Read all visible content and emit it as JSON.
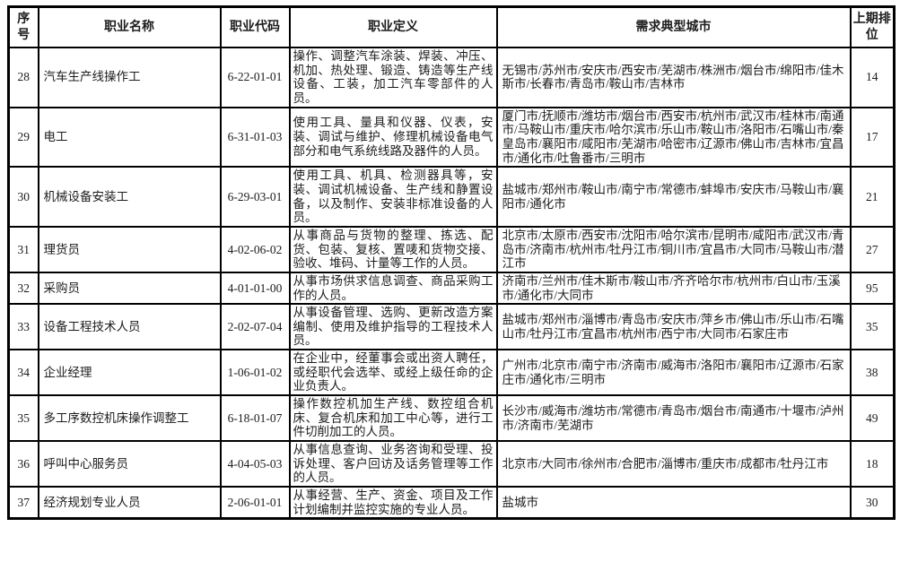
{
  "colors": {
    "background": "#ffffff",
    "border": "#000000",
    "text": "#1c1c1c"
  },
  "table": {
    "columns": [
      {
        "key": "no",
        "label": "序号"
      },
      {
        "key": "name",
        "label": "职业名称"
      },
      {
        "key": "code",
        "label": "职业代码"
      },
      {
        "key": "definition",
        "label": "职业定义"
      },
      {
        "key": "cities",
        "label": "需求典型城市"
      },
      {
        "key": "rank",
        "label": "上期排位"
      }
    ],
    "rows": [
      {
        "no": "28",
        "name": "汽车生产线操作工",
        "code": "6-22-01-01",
        "definition": "操作、调整汽车涂装、焊装、冲压、机加、热处理、锻造、铸造等生产线设备、工装，加工汽车零部件的人员。",
        "cities": "无锡市/苏州市/安庆市/西安市/芜湖市/株洲市/烟台市/绵阳市/佳木斯市/长春市/青岛市/鞍山市/吉林市",
        "rank": "14"
      },
      {
        "no": "29",
        "name": "电工",
        "code": "6-31-01-03",
        "definition": "使用工具、量具和仪器、仪表，安装、调试与维护、修理机械设备电气部分和电气系统线路及器件的人员。",
        "cities": "厦门市/抚顺市/潍坊市/烟台市/西安市/杭州市/武汉市/桂林市/南通市/马鞍山市/重庆市/哈尔滨市/乐山市/鞍山市/洛阳市/石嘴山市/秦皇岛市/襄阳市/咸阳市/芜湖市/哈密市/辽源市/佛山市/吉林市/宜昌市/通化市/吐鲁番市/三明市",
        "rank": "17"
      },
      {
        "no": "30",
        "name": "机械设备安装工",
        "code": "6-29-03-01",
        "definition": "使用工具、机具、检测器具等，安装、调试机械设备、生产线和静置设备，以及制作、安装非标准设备的人员。",
        "cities": "盐城市/郑州市/鞍山市/南宁市/常德市/蚌埠市/安庆市/马鞍山市/襄阳市/通化市",
        "rank": "21"
      },
      {
        "no": "31",
        "name": "理货员",
        "code": "4-02-06-02",
        "definition": "从事商品与货物的整理、拣选、配货、包装、复核、置唛和货物交接、验收、堆码、计量等工作的人员。",
        "cities": "北京市/太原市/西安市/沈阳市/哈尔滨市/昆明市/咸阳市/武汉市/青岛市/济南市/杭州市/牡丹江市/铜川市/宜昌市/大同市/马鞍山市/潜江市",
        "rank": "27"
      },
      {
        "no": "32",
        "name": "采购员",
        "code": "4-01-01-00",
        "definition": "从事市场供求信息调查、商品采购工作的人员。",
        "cities": "济南市/兰州市/佳木斯市/鞍山市/齐齐哈尔市/杭州市/白山市/玉溪市/通化市/大同市",
        "rank": "95"
      },
      {
        "no": "33",
        "name": "设备工程技术人员",
        "code": "2-02-07-04",
        "definition": "从事设备管理、选购、更新改造方案编制、使用及维护指导的工程技术人员。",
        "cities": "盐城市/郑州市/淄博市/青岛市/安庆市/萍乡市/佛山市/乐山市/石嘴山市/牡丹江市/宜昌市/杭州市/西宁市/大同市/石家庄市",
        "rank": "35"
      },
      {
        "no": "34",
        "name": "企业经理",
        "code": "1-06-01-02",
        "definition": "在企业中，经董事会或出资人聘任，或经职代会选举、或经上级任命的企业负责人。",
        "cities": "广州市/北京市/南宁市/济南市/威海市/洛阳市/襄阳市/辽源市/石家庄市/通化市/三明市",
        "rank": "38"
      },
      {
        "no": "35",
        "name": "多工序数控机床操作调整工",
        "code": "6-18-01-07",
        "definition": "操作数控机加生产线、数控组合机床、复合机床和加工中心等，进行工件切削加工的人员。",
        "cities": "长沙市/威海市/潍坊市/常德市/青岛市/烟台市/南通市/十堰市/泸州市/济南市/芜湖市",
        "rank": "49"
      },
      {
        "no": "36",
        "name": "呼叫中心服务员",
        "code": "4-04-05-03",
        "definition": "从事信息查询、业务咨询和受理、投诉处理、客户回访及话务管理等工作的人员。",
        "cities": "北京市/大同市/徐州市/合肥市/淄博市/重庆市/成都市/牡丹江市",
        "rank": "18"
      },
      {
        "no": "37",
        "name": "经济规划专业人员",
        "code": "2-06-01-01",
        "definition": "从事经营、生产、资金、项目及工作计划编制并监控实施的专业人员。",
        "cities": "盐城市",
        "rank": "30"
      }
    ]
  }
}
